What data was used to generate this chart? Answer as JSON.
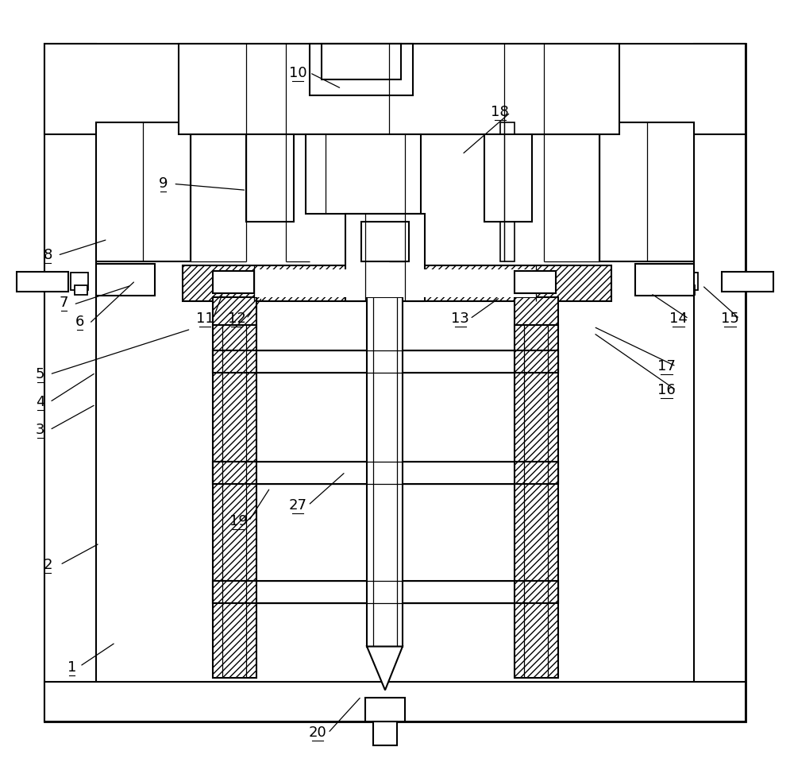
{
  "bg": "#ffffff",
  "lc": "#000000",
  "lw": 1.5,
  "tlw": 0.9,
  "fs": 13,
  "fig_w": 10.0,
  "fig_h": 9.7
}
